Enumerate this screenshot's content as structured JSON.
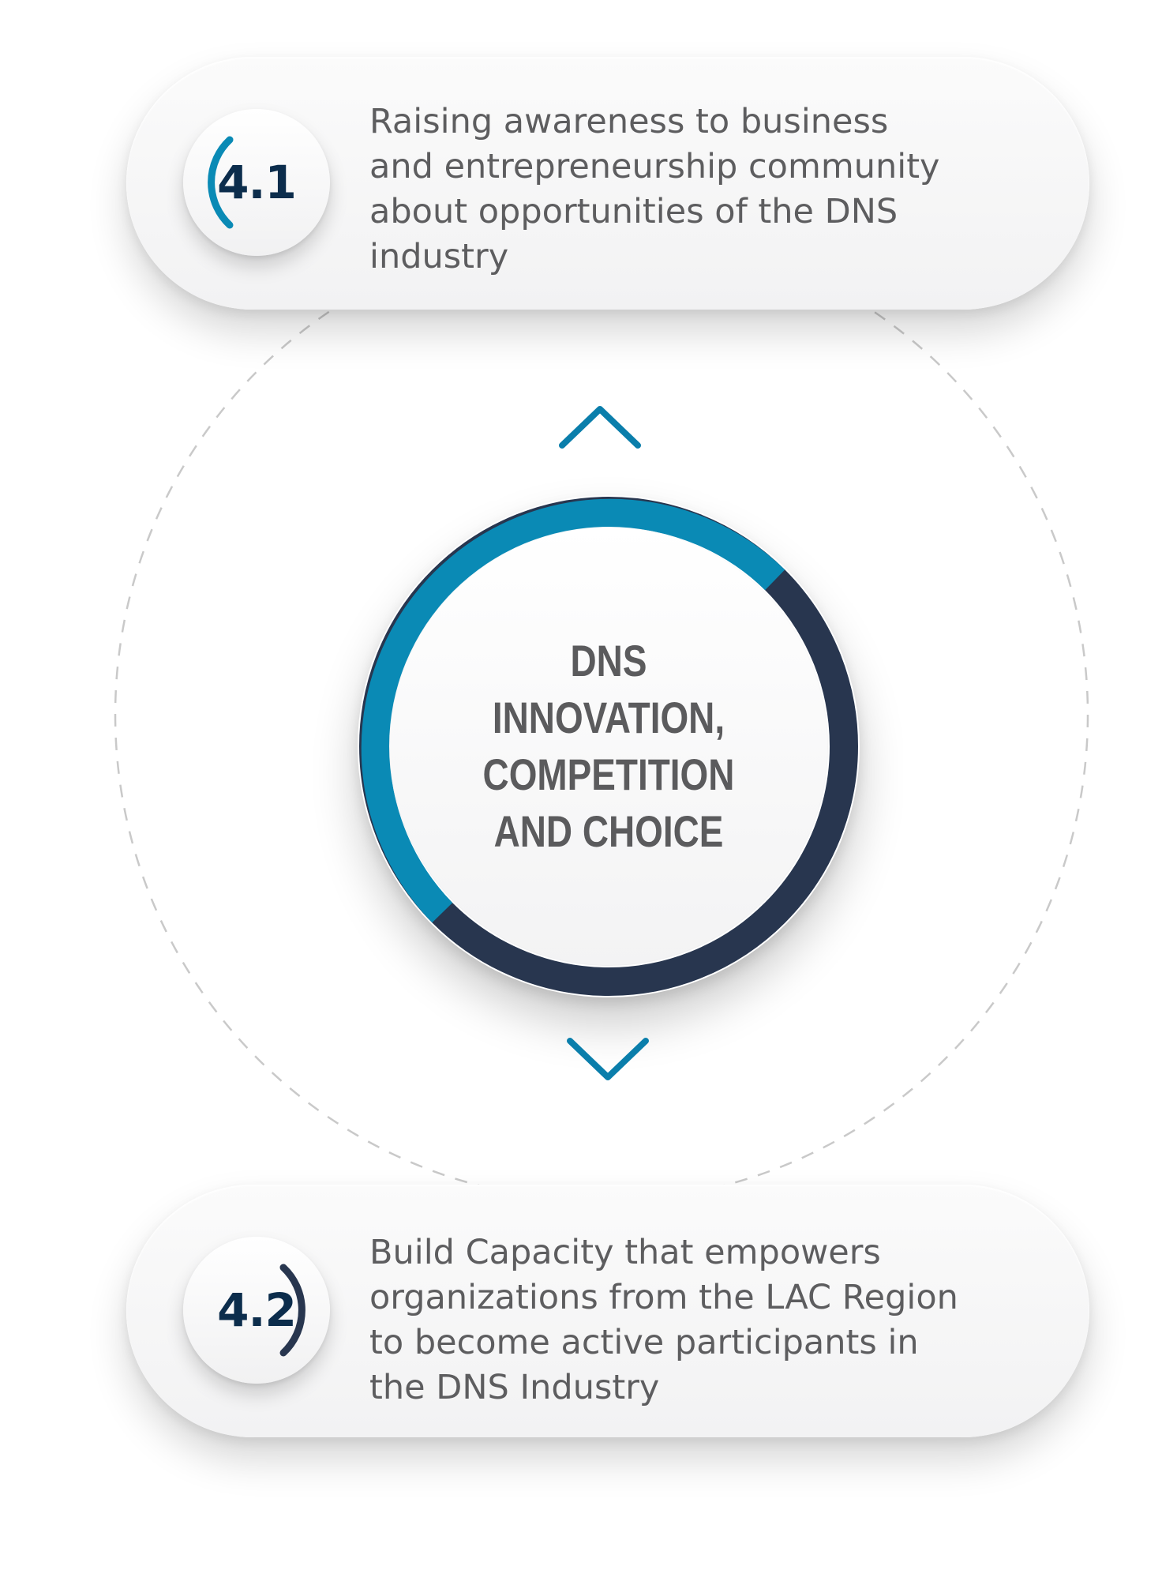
{
  "colors": {
    "accent_teal": "#0a8ab5",
    "navy": "#28364f",
    "dark_text": "#0c2d4c",
    "body_text": "#5d5d5f",
    "dashed_ring": "#c9c9c9"
  },
  "center": {
    "lines": [
      "DNS",
      "INNOVATION,",
      "COMPETITION",
      "AND CHOICE"
    ]
  },
  "arrows": {
    "top": "chevron-up-icon",
    "bottom": "chevron-down-icon"
  },
  "items": [
    {
      "number": "4.1",
      "lines": [
        "Raising awareness to business",
        "and entrepreneurship community",
        "about opportunities of the DNS",
        "industry"
      ]
    },
    {
      "number": "4.2",
      "lines": [
        "Build Capacity that empowers",
        "organizations from the LAC Region",
        "to become active participants in",
        "the DNS Industry"
      ]
    }
  ]
}
